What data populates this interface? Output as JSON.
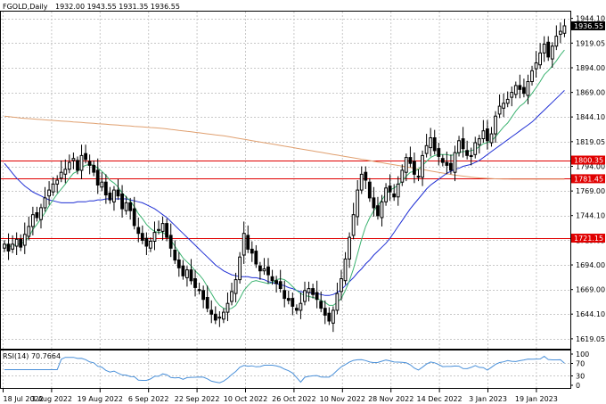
{
  "header": {
    "symbol": "FGOLD,Daily",
    "ohlc": "1932.00 1943.55 1931.35 1936.55"
  },
  "colors": {
    "background": "#ffffff",
    "grid": "#c8c8c8",
    "bull": "#000000",
    "bear": "#000000",
    "ma_fast": "#3cb371",
    "ma_mid": "#1f2fd4",
    "ma_slow": "#e0a070",
    "level_line": "#e00000",
    "rsi": "#4a90d9"
  },
  "chart_data": {
    "type": "candlestick",
    "title": "FGOLD,Daily",
    "y_ticks": [
      "1944.10",
      "1919.05",
      "1894.00",
      "1869.00",
      "1844.10",
      "1819.05",
      "1794.00",
      "1769.00",
      "1744.10",
      "1719.05",
      "1694.00",
      "1669.00",
      "1644.10",
      "1619.05"
    ],
    "ylim": [
      1609,
      1951
    ],
    "x_ticks": [
      "18 Jul 2022",
      "3 Aug 2022",
      "19 Aug 2022",
      "6 Sep 2022",
      "22 Sep 2022",
      "10 Oct 2022",
      "26 Oct 2022",
      "10 Nov 2022",
      "28 Nov 2022",
      "14 Dec 2022",
      "3 Jan 2023",
      "19 Jan 2023"
    ],
    "last_price_label": "1936.55",
    "levels": [
      {
        "label": "1800.35",
        "value": 1800.35
      },
      {
        "label": "1781.45",
        "value": 1781.45
      },
      {
        "label": "1721.15",
        "value": 1721.15
      }
    ],
    "close": [
      1715,
      1708,
      1715,
      1720,
      1712,
      1725,
      1733,
      1745,
      1742,
      1752,
      1762,
      1770,
      1776,
      1780,
      1788,
      1791,
      1798,
      1802,
      1790,
      1805,
      1801,
      1795,
      1788,
      1775,
      1778,
      1765,
      1760,
      1770,
      1764,
      1751,
      1757,
      1749,
      1734,
      1726,
      1719,
      1713,
      1718,
      1727,
      1730,
      1736,
      1722,
      1711,
      1699,
      1691,
      1683,
      1689,
      1678,
      1671,
      1668,
      1659,
      1650,
      1644,
      1638,
      1641,
      1646,
      1655,
      1667,
      1679,
      1702,
      1726,
      1710,
      1706,
      1695,
      1688,
      1690,
      1684,
      1678,
      1675,
      1670,
      1660,
      1658,
      1652,
      1648,
      1655,
      1668,
      1670,
      1664,
      1659,
      1650,
      1643,
      1637,
      1648,
      1665,
      1680,
      1700,
      1722,
      1745,
      1770,
      1786,
      1780,
      1762,
      1752,
      1744,
      1758,
      1772,
      1768,
      1763,
      1776,
      1790,
      1803,
      1797,
      1786,
      1783,
      1805,
      1815,
      1823,
      1810,
      1804,
      1798,
      1795,
      1790,
      1808,
      1820,
      1812,
      1805,
      1804,
      1818,
      1822,
      1830,
      1820,
      1827,
      1845,
      1855,
      1858,
      1862,
      1869,
      1876,
      1872,
      1868,
      1880,
      1891,
      1899,
      1909,
      1918,
      1905,
      1916,
      1926,
      1931,
      1936.55
    ],
    "ma_fast": [
      1715,
      1713,
      1713,
      1715,
      1715,
      1718,
      1722,
      1730,
      1735,
      1741,
      1747,
      1754,
      1760,
      1766,
      1771,
      1776,
      1782,
      1787,
      1789,
      1793,
      1795,
      1796,
      1795,
      1792,
      1789,
      1785,
      1780,
      1777,
      1773,
      1767,
      1763,
      1759,
      1753,
      1746,
      1741,
      1735,
      1731,
      1728,
      1727,
      1727,
      1724,
      1719,
      1713,
      1707,
      1701,
      1697,
      1693,
      1688,
      1684,
      1679,
      1672,
      1665,
      1658,
      1653,
      1650,
      1649,
      1650,
      1653,
      1660,
      1668,
      1673,
      1677,
      1678,
      1677,
      1676,
      1675,
      1676,
      1679,
      1680,
      1679,
      1676,
      1672,
      1668,
      1665,
      1663,
      1662,
      1661,
      1660,
      1658,
      1656,
      1653,
      1653,
      1656,
      1660,
      1668,
      1678,
      1690,
      1705,
      1720,
      1733,
      1742,
      1749,
      1754,
      1760,
      1766,
      1770,
      1772,
      1775,
      1779,
      1784,
      1788,
      1789,
      1791,
      1795,
      1799,
      1803,
      1805,
      1806,
      1806,
      1806,
      1805,
      1806,
      1808,
      1809,
      1809,
      1810,
      1811,
      1814,
      1817,
      1818,
      1820,
      1824,
      1829,
      1834,
      1838,
      1844,
      1850,
      1855,
      1858,
      1863,
      1868,
      1874,
      1880,
      1887,
      1891,
      1896,
      1901,
      1907,
      1912
    ],
    "ma_mid": [
      1797,
      1792,
      1787,
      1782,
      1778,
      1774,
      1771,
      1768,
      1766,
      1764,
      1762,
      1760,
      1759,
      1758,
      1757,
      1757,
      1757,
      1757,
      1758,
      1758,
      1758,
      1759,
      1759,
      1760,
      1760,
      1761,
      1761,
      1761,
      1761,
      1761,
      1761,
      1760,
      1759,
      1758,
      1757,
      1755,
      1753,
      1751,
      1748,
      1745,
      1742,
      1738,
      1734,
      1730,
      1726,
      1722,
      1718,
      1714,
      1710,
      1706,
      1702,
      1698,
      1694,
      1691,
      1688,
      1686,
      1684,
      1683,
      1682,
      1682,
      1682,
      1681,
      1681,
      1680,
      1679,
      1677,
      1676,
      1675,
      1674,
      1673,
      1671,
      1670,
      1668,
      1667,
      1666,
      1666,
      1665,
      1665,
      1664,
      1663,
      1663,
      1664,
      1666,
      1669,
      1673,
      1677,
      1681,
      1686,
      1690,
      1695,
      1699,
      1704,
      1708,
      1712,
      1716,
      1721,
      1727,
      1733,
      1739,
      1745,
      1751,
      1756,
      1761,
      1766,
      1771,
      1775,
      1778,
      1781,
      1784,
      1787,
      1789,
      1791,
      1792,
      1794,
      1795,
      1796,
      1798,
      1800,
      1803,
      1806,
      1809,
      1812,
      1815,
      1818,
      1821,
      1824,
      1827,
      1830,
      1833,
      1836,
      1839,
      1843,
      1847,
      1851,
      1855,
      1859,
      1863,
      1867,
      1871
    ],
    "ma_slow": [
      1845,
      1844.5,
      1844,
      1843.5,
      1843,
      1842.7,
      1842.4,
      1842.1,
      1841.8,
      1841.5,
      1841.2,
      1840.9,
      1840.6,
      1840.3,
      1840,
      1839.7,
      1839.4,
      1839.1,
      1838.8,
      1838.5,
      1838.2,
      1837.9,
      1837.6,
      1837.3,
      1837,
      1836.7,
      1836.4,
      1836.1,
      1835.8,
      1835.5,
      1835.2,
      1834.9,
      1834.6,
      1834.3,
      1834,
      1833.7,
      1833.4,
      1833.1,
      1832.8,
      1832.5,
      1832,
      1831.5,
      1831,
      1830.5,
      1830,
      1829.5,
      1829,
      1828.5,
      1828,
      1827.5,
      1827,
      1826.5,
      1826,
      1825.5,
      1825,
      1824.3,
      1823.6,
      1822.9,
      1822.2,
      1821.5,
      1820.8,
      1820.1,
      1819.4,
      1818.7,
      1818,
      1817.3,
      1816.6,
      1815.9,
      1815.2,
      1814.5,
      1813.8,
      1813.1,
      1812.4,
      1811.7,
      1811,
      1810.3,
      1809.6,
      1808.9,
      1808.2,
      1807.5,
      1806.8,
      1806.1,
      1805.4,
      1804.7,
      1804,
      1803.3,
      1802.6,
      1801.9,
      1801.2,
      1800.5,
      1799.8,
      1799.1,
      1798.4,
      1797.7,
      1797,
      1796.3,
      1795.6,
      1794.9,
      1794.2,
      1793.5,
      1792.8,
      1792.1,
      1791.4,
      1790.7,
      1790,
      1789.3,
      1788.6,
      1787.9,
      1787.2,
      1786.5,
      1785.8,
      1785.1,
      1784.6,
      1784.1,
      1783.6,
      1783.1,
      1782.6,
      1782.3,
      1782,
      1781.8,
      1781.6,
      1781.4,
      1781.3,
      1781.2,
      1781.1,
      1781,
      1781,
      1781,
      1781,
      1781,
      1781,
      1781,
      1781,
      1781,
      1781,
      1781,
      1781,
      1781,
      1781
    ],
    "rsi": {
      "label": "RSI(14) 70.7664",
      "ticks": [
        "100",
        "70",
        "30",
        "0"
      ],
      "ylim": [
        0,
        100
      ],
      "last": 70.7664
    }
  }
}
